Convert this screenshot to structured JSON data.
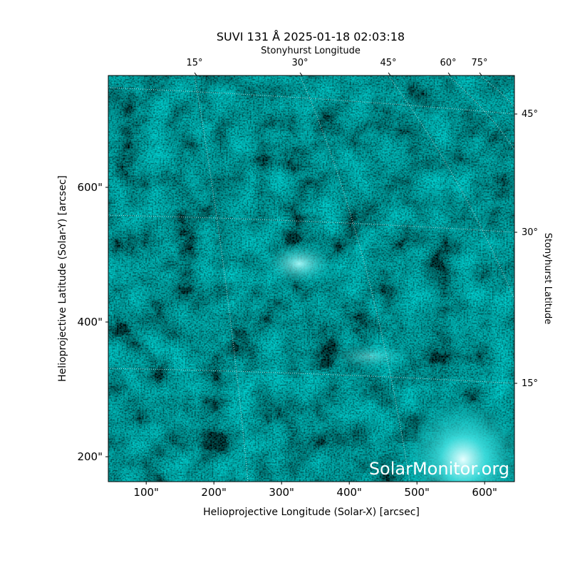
{
  "chart_data": {
    "type": "image",
    "title": "SUVI 131 Å 2025-01-18 02:03:18",
    "xlabel": "Helioprojective Longitude (Solar-X) [arcsec]",
    "ylabel": "Helioprojective Latitude (Solar-Y) [arcsec]",
    "xlim": [
      44,
      644
    ],
    "ylim": [
      163,
      766
    ],
    "xticks": [
      {
        "value": 100,
        "label": "100\""
      },
      {
        "value": 200,
        "label": "200\""
      },
      {
        "value": 300,
        "label": "300\""
      },
      {
        "value": 400,
        "label": "400\""
      },
      {
        "value": 500,
        "label": "500\""
      },
      {
        "value": 600,
        "label": "600\""
      }
    ],
    "yticks": [
      {
        "value": 200,
        "label": "200\""
      },
      {
        "value": 400,
        "label": "400\""
      },
      {
        "value": 600,
        "label": "600\""
      }
    ],
    "top_label": "Stonyhurst Longitude",
    "top_ticks": [
      {
        "value": 15,
        "label": "15°"
      },
      {
        "value": 30,
        "label": "30°"
      },
      {
        "value": 45,
        "label": "45°"
      },
      {
        "value": 60,
        "label": "60°"
      },
      {
        "value": 75,
        "label": "75°"
      }
    ],
    "right_label": "Stonyhurst Latitude",
    "right_ticks": [
      {
        "value": 15,
        "label": "15°"
      },
      {
        "value": 30,
        "label": "30°"
      },
      {
        "value": 45,
        "label": "45°"
      }
    ],
    "watermark": "SolarMonitor.org"
  }
}
